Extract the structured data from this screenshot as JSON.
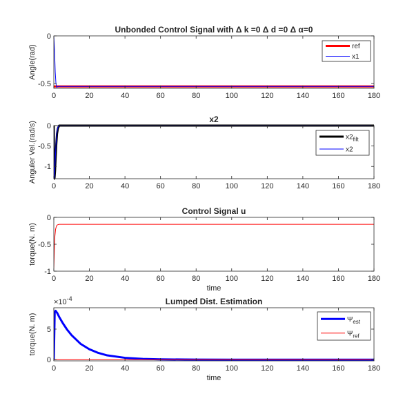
{
  "chart_data": [
    {
      "type": "line",
      "title": "Unbonded Control Signal with Δ k =0 Δ d =0 Δ α=0",
      "xlabel": "",
      "ylabel": "Angle(rad)",
      "xlim": [
        0,
        180
      ],
      "ylim": [
        -0.55,
        0
      ],
      "xticks": [
        "0",
        "20",
        "40",
        "60",
        "80",
        "100",
        "120",
        "140",
        "160",
        "180"
      ],
      "yticks": [
        {
          "value": 0,
          "label": "0"
        },
        {
          "value": -0.5,
          "label": "-0.5"
        }
      ],
      "legend_location": "top-right",
      "series": [
        {
          "name": "ref",
          "color": "#ff0000",
          "width": 3,
          "x": [
            0,
            180
          ],
          "y": [
            -0.53,
            -0.53
          ]
        },
        {
          "name": "x1",
          "color": "#0000ff",
          "width": 1,
          "x": [
            0,
            0.4,
            0.8,
            1.2,
            1.6,
            2.0,
            2.5,
            180
          ],
          "y": [
            0,
            -0.15,
            -0.38,
            -0.5,
            -0.54,
            -0.535,
            -0.53,
            -0.53
          ]
        }
      ]
    },
    {
      "type": "line",
      "title": "x2",
      "xlabel": "",
      "ylabel": "Anguler Vel.(rad/s)",
      "xlim": [
        0,
        180
      ],
      "ylim": [
        -1.3,
        0
      ],
      "xticks": [
        "0",
        "20",
        "40",
        "60",
        "80",
        "100",
        "120",
        "140",
        "160",
        "180"
      ],
      "yticks": [
        {
          "value": 0,
          "label": "0"
        },
        {
          "value": -0.5,
          "label": "-0.5"
        },
        {
          "value": -1,
          "label": "-1"
        }
      ],
      "legend_location": "top-right",
      "series": [
        {
          "name": "x2",
          "subscript": "filt",
          "color": "#000000",
          "width": 3,
          "x": [
            0,
            0.2,
            0.4,
            0.7,
            1.0,
            1.4,
            1.8,
            2.3,
            3,
            180
          ],
          "y": [
            0,
            -1.3,
            -1.28,
            -1.1,
            -0.8,
            -0.45,
            -0.2,
            -0.07,
            0,
            0
          ]
        },
        {
          "name": "x2",
          "color": "#0000ff",
          "width": 1,
          "x": [
            0,
            0.15,
            0.3,
            0.6,
            0.9,
            1.3,
            1.7,
            2.2,
            3,
            180
          ],
          "y": [
            0,
            -1.3,
            -1.25,
            -1.05,
            -0.75,
            -0.4,
            -0.18,
            -0.05,
            0,
            0
          ]
        }
      ]
    },
    {
      "type": "line",
      "title": "Control Signal u",
      "xlabel": "time",
      "ylabel": "torque(N. m)",
      "xlim": [
        0,
        180
      ],
      "ylim": [
        -1,
        0
      ],
      "xticks": [
        "0",
        "20",
        "40",
        "60",
        "80",
        "100",
        "120",
        "140",
        "160",
        "180"
      ],
      "yticks": [
        {
          "value": 0,
          "label": "0"
        },
        {
          "value": -0.5,
          "label": "-0.5"
        },
        {
          "value": -1,
          "label": "-1"
        }
      ],
      "legend_location": "",
      "series": [
        {
          "name": "",
          "color": "#ff0000",
          "width": 1,
          "x": [
            0,
            0.3,
            0.6,
            1.0,
            1.5,
            2.0,
            3.0,
            180
          ],
          "y": [
            -0.95,
            -0.6,
            -0.35,
            -0.22,
            -0.16,
            -0.14,
            -0.13,
            -0.13
          ]
        }
      ]
    },
    {
      "type": "line",
      "title": "Lumped Dist. Estimation",
      "xlabel": "time",
      "ylabel": "torque(N. m)",
      "exponent_label": "×10",
      "exponent_power": "-4",
      "xlim": [
        0,
        180
      ],
      "ylim": [
        -0.2,
        8.5
      ],
      "xticks": [
        "0",
        "20",
        "40",
        "60",
        "80",
        "100",
        "120",
        "140",
        "160",
        "180"
      ],
      "yticks": [
        {
          "value": 0,
          "label": "0"
        },
        {
          "value": 5,
          "label": "5"
        }
      ],
      "legend_location": "top-right",
      "series": [
        {
          "name": "Ψ",
          "subscript": "est",
          "color": "#0000ff",
          "width": 3,
          "x": [
            0,
            0.5,
            1,
            2,
            3,
            5,
            7.5,
            10,
            15,
            20,
            25,
            30,
            40,
            50,
            60,
            80,
            100,
            180
          ],
          "y": [
            0,
            7.8,
            8.0,
            7.6,
            7.0,
            6.0,
            4.9,
            4.0,
            2.6,
            1.7,
            1.1,
            0.7,
            0.3,
            0.12,
            0.05,
            0.01,
            0,
            0
          ]
        },
        {
          "name": "Ψ",
          "subscript": "ref",
          "color": "#ff0000",
          "width": 1,
          "x": [
            0,
            180
          ],
          "y": [
            0,
            0
          ]
        }
      ]
    }
  ]
}
